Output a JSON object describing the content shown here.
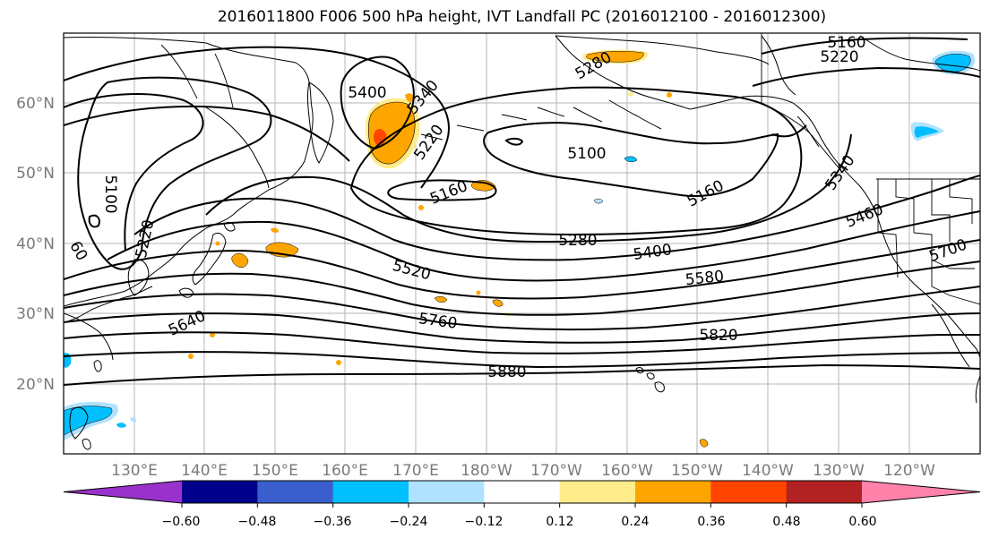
{
  "title": "2016011800 F006 500 hPa height, IVT Landfall PC (2016012100 - 2016012300)",
  "lat_labels": [
    "60°N",
    "50°N",
    "40°N",
    "30°N",
    "20°N"
  ],
  "lon_labels": [
    "130°E",
    "140°E",
    "150°E",
    "160°E",
    "170°E",
    "180°W",
    "170°W",
    "160°W",
    "150°W",
    "140°W",
    "130°W",
    "120°W"
  ],
  "contour_labels": [
    "5160",
    "5220",
    "5400",
    "5340",
    "5280",
    "5220",
    "5100",
    "5160",
    "5100",
    "5220",
    "5160",
    "5340",
    "5460",
    "5280",
    "5400",
    "5520",
    "5580",
    "5700",
    "5640",
    "5760",
    "5820",
    "5880",
    "60"
  ],
  "colorbar": {
    "colors": [
      "#9932cc",
      "#00008b",
      "#3a5fcd",
      "#00bfff",
      "#b0e2ff",
      "#ffffff",
      "#ffec8b",
      "#ffa500",
      "#ff4500",
      "#b22222",
      "#ff82ab"
    ],
    "tick_labels": [
      "−0.60",
      "−0.48",
      "−0.36",
      "−0.24",
      "−0.12",
      "0.12",
      "0.24",
      "0.36",
      "0.48",
      "0.60"
    ]
  }
}
